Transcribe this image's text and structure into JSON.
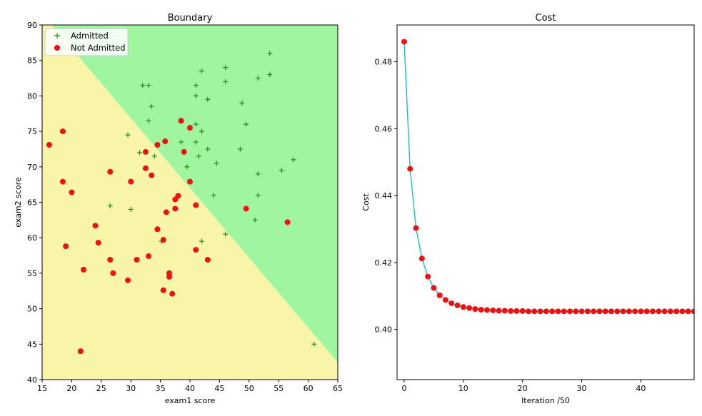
{
  "chart_data": [
    {
      "type": "scatter",
      "title": "Boundary",
      "xlabel": "exam1 score",
      "ylabel": "exam2 score",
      "xlim": [
        15,
        65
      ],
      "ylim": [
        40,
        90
      ],
      "xticks": [
        15,
        20,
        25,
        30,
        35,
        40,
        45,
        50,
        55,
        60,
        65
      ],
      "yticks": [
        40,
        45,
        50,
        55,
        60,
        65,
        70,
        75,
        80,
        85,
        90
      ],
      "grid": false,
      "legend_position": "top-left",
      "decision_boundary": {
        "x": [
          15,
          65
        ],
        "y": [
          91.6,
          42.4
        ]
      },
      "region_colors": {
        "admitted": "#a0f6a0",
        "not_admitted": "#f8f5a8"
      },
      "series": [
        {
          "name": "Admitted",
          "marker": "plus",
          "color": "#1a8a1a",
          "points": [
            [
              32,
              81.5
            ],
            [
              33,
              81.5
            ],
            [
              42,
              83.5
            ],
            [
              46,
              84
            ],
            [
              53.5,
              86
            ],
            [
              53.5,
              83
            ],
            [
              51.5,
              82.5
            ],
            [
              46,
              82
            ],
            [
              41,
              81.5
            ],
            [
              41,
              80
            ],
            [
              43,
              79.5
            ],
            [
              48.8,
              79
            ],
            [
              33.5,
              78.5
            ],
            [
              33,
              76.5
            ],
            [
              41,
              76
            ],
            [
              49.5,
              76
            ],
            [
              42,
              75
            ],
            [
              29.5,
              74.5
            ],
            [
              41,
              73.5
            ],
            [
              38.5,
              73.5
            ],
            [
              48.5,
              72.5
            ],
            [
              43,
              72.5
            ],
            [
              31.5,
              72
            ],
            [
              34,
              71.5
            ],
            [
              41.5,
              71.5
            ],
            [
              57.5,
              71
            ],
            [
              44.5,
              70.5
            ],
            [
              39.5,
              70
            ],
            [
              55.5,
              69.5
            ],
            [
              51.5,
              69
            ],
            [
              44,
              66
            ],
            [
              51.5,
              66
            ],
            [
              26.5,
              64.5
            ],
            [
              30,
              64
            ],
            [
              51,
              62.5
            ],
            [
              46,
              60.5
            ],
            [
              35.2,
              59.5
            ],
            [
              42,
              59.5
            ],
            [
              61,
              45
            ]
          ]
        },
        {
          "name": "Not Admitted",
          "marker": "circle",
          "color": "#ee1111",
          "points": [
            [
              16.2,
              73.1
            ],
            [
              18.5,
              75
            ],
            [
              38.5,
              76.5
            ],
            [
              40,
              75.5
            ],
            [
              35.8,
              73.6
            ],
            [
              34.5,
              73.1
            ],
            [
              32.5,
              72.1
            ],
            [
              39,
              72.1
            ],
            [
              32.5,
              69.8
            ],
            [
              26.5,
              69.3
            ],
            [
              33.5,
              68.8
            ],
            [
              18.5,
              67.9
            ],
            [
              30,
              67.9
            ],
            [
              40,
              67.9
            ],
            [
              20,
              66.4
            ],
            [
              38,
              65.9
            ],
            [
              37.5,
              65.4
            ],
            [
              41,
              64.6
            ],
            [
              37.5,
              64.1
            ],
            [
              49.5,
              64.1
            ],
            [
              36,
              63.6
            ],
            [
              24,
              61.7
            ],
            [
              56.5,
              62.2
            ],
            [
              34.5,
              61.2
            ],
            [
              35.5,
              59.7
            ],
            [
              24.5,
              59.3
            ],
            [
              19,
              58.8
            ],
            [
              41,
              58.3
            ],
            [
              33,
              57.4
            ],
            [
              31,
              56.9
            ],
            [
              26.5,
              56.9
            ],
            [
              43,
              56.9
            ],
            [
              22,
              55.5
            ],
            [
              27,
              55
            ],
            [
              36.5,
              55
            ],
            [
              36.5,
              54.5
            ],
            [
              29.5,
              54
            ],
            [
              35.5,
              52.6
            ],
            [
              37,
              52.1
            ],
            [
              21.5,
              44
            ]
          ]
        }
      ]
    },
    {
      "type": "line",
      "title": "Cost",
      "xlabel": "Iteration /50",
      "ylabel": "Cost",
      "xlim": [
        -1.2,
        49
      ],
      "ylim": [
        0.385,
        0.491
      ],
      "xticks": [
        0,
        10,
        20,
        30,
        40
      ],
      "yticks": [
        0.4,
        0.42,
        0.44,
        0.46,
        0.48
      ],
      "ytick_labels": [
        "0.40",
        "0.42",
        "0.44",
        "0.46",
        "0.48"
      ],
      "grid": false,
      "line_color": "#17becf",
      "marker_color": "#ee1111",
      "x": [
        0,
        1,
        2,
        3,
        4,
        5,
        6,
        7,
        8,
        9,
        10,
        11,
        12,
        13,
        14,
        15,
        16,
        17,
        18,
        19,
        20,
        21,
        22,
        23,
        24,
        25,
        26,
        27,
        28,
        29,
        30,
        31,
        32,
        33,
        34,
        35,
        36,
        37,
        38,
        39,
        40,
        41,
        42,
        43,
        44,
        45,
        46,
        47,
        48,
        49
      ],
      "values": [
        0.486,
        0.448,
        0.4303,
        0.4212,
        0.4158,
        0.4124,
        0.4102,
        0.4088,
        0.4078,
        0.4072,
        0.4067,
        0.4064,
        0.4061,
        0.4059,
        0.4058,
        0.4057,
        0.4056,
        0.4056,
        0.4055,
        0.4055,
        0.4055,
        0.4054,
        0.4054,
        0.4054,
        0.4054,
        0.4054,
        0.4054,
        0.4054,
        0.4054,
        0.4054,
        0.4054,
        0.4054,
        0.4054,
        0.4054,
        0.4054,
        0.4054,
        0.4054,
        0.4054,
        0.4054,
        0.4054,
        0.4054,
        0.4054,
        0.4054,
        0.4054,
        0.4054,
        0.4054,
        0.4054,
        0.4054,
        0.4054,
        0.4054
      ]
    }
  ]
}
